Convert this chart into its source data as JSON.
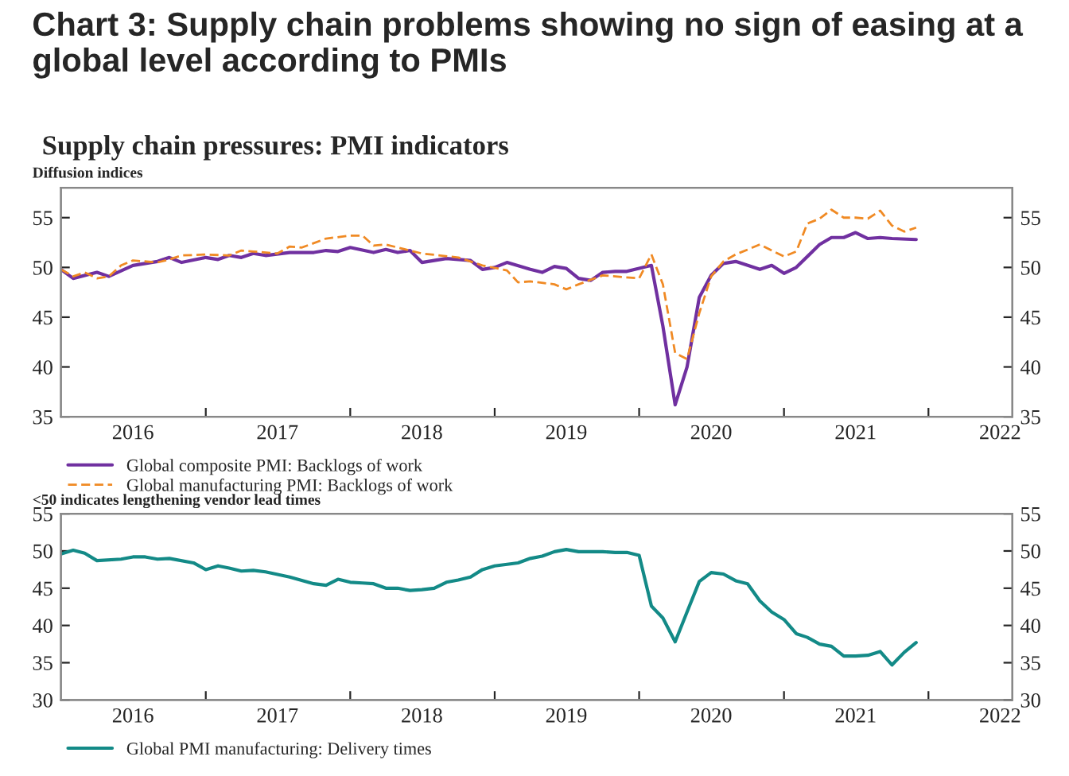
{
  "chart_data": [
    {
      "type": "line",
      "title": "Chart 3: Supply chain problems showing no sign of easing at a global level according to PMIs",
      "subtitle": "Supply chain pressures: PMI indicators",
      "ylabel": "Diffusion indices",
      "xlim": [
        "2016-01-01",
        "2022-08-01"
      ],
      "xticks": [
        {
          "value": "2016-07-01",
          "label": "2016"
        },
        {
          "value": "2017-01-01",
          "label": null
        },
        {
          "value": "2017-07-01",
          "label": "2017"
        },
        {
          "value": "2018-01-01",
          "label": null
        },
        {
          "value": "2018-07-01",
          "label": "2018"
        },
        {
          "value": "2019-01-01",
          "label": null
        },
        {
          "value": "2019-07-01",
          "label": "2019"
        },
        {
          "value": "2020-01-01",
          "label": null
        },
        {
          "value": "2020-07-01",
          "label": "2020"
        },
        {
          "value": "2021-01-01",
          "label": null
        },
        {
          "value": "2021-07-01",
          "label": "2021"
        },
        {
          "value": "2022-01-01",
          "label": null
        },
        {
          "value": "2022-07-01",
          "label": "2022"
        }
      ],
      "ylim": [
        35,
        58
      ],
      "yticks": [
        35,
        40,
        45,
        50,
        55
      ],
      "y2lim": [
        35,
        58
      ],
      "y2ticks": [
        35,
        40,
        45,
        50,
        55
      ],
      "grid": false,
      "legend": "bottom left",
      "series": [
        {
          "name": "Global composite PMI: Backlogs of work",
          "color": "#7030a0",
          "line_style": "solid",
          "x": [
            "2016-01",
            "2016-02",
            "2016-04",
            "2016-05",
            "2016-07",
            "2016-09",
            "2016-10",
            "2016-11",
            "2017-01",
            "2017-02",
            "2017-03",
            "2017-04",
            "2017-05",
            "2017-06",
            "2017-08",
            "2017-10",
            "2017-11",
            "2017-12",
            "2018-01",
            "2018-03",
            "2018-04",
            "2018-05",
            "2018-06",
            "2018-07",
            "2018-09",
            "2018-11",
            "2018-12",
            "2019-01",
            "2019-02",
            "2019-04",
            "2019-05",
            "2019-06",
            "2019-07",
            "2019-08",
            "2019-09",
            "2019-10",
            "2019-11",
            "2019-12",
            "2020-02",
            "2020-03",
            "2020-04",
            "2020-05",
            "2020-06",
            "2020-07",
            "2020-08",
            "2020-09",
            "2020-11",
            "2020-12",
            "2021-01",
            "2021-02",
            "2021-04",
            "2021-05",
            "2021-06",
            "2021-07",
            "2021-08",
            "2021-09",
            "2021-10",
            "2021-12"
          ],
          "values": [
            49.8,
            48.9,
            49.5,
            49.1,
            50.2,
            50.6,
            51.0,
            50.5,
            51.0,
            50.8,
            51.2,
            51.0,
            51.4,
            51.2,
            51.5,
            51.5,
            51.7,
            51.6,
            52.0,
            51.5,
            51.8,
            51.5,
            51.7,
            50.5,
            50.9,
            50.7,
            49.8,
            50.0,
            50.5,
            49.8,
            49.5,
            50.1,
            49.9,
            48.9,
            48.7,
            49.5,
            49.6,
            49.6,
            50.2,
            44.1,
            36.2,
            40.0,
            47.0,
            49.2,
            50.4,
            50.6,
            49.8,
            50.2,
            49.4,
            50.0,
            52.3,
            53.0,
            53.0,
            53.5,
            52.9,
            53.0,
            52.9,
            52.8
          ]
        },
        {
          "name": "Global manufacturing PMI: Backlogs of work",
          "color": "#f08a24",
          "line_style": "dashed",
          "x": [
            "2016-01",
            "2016-02",
            "2016-03",
            "2016-04",
            "2016-05",
            "2016-06",
            "2016-07",
            "2016-09",
            "2016-10",
            "2016-11",
            "2017-01",
            "2017-03",
            "2017-04",
            "2017-05",
            "2017-07",
            "2017-08",
            "2017-09",
            "2017-11",
            "2018-01",
            "2018-02",
            "2018-03",
            "2018-04",
            "2018-05",
            "2018-07",
            "2018-10",
            "2018-11",
            "2018-12",
            "2019-02",
            "2019-03",
            "2019-04",
            "2019-06",
            "2019-07",
            "2019-08",
            "2019-10",
            "2019-11",
            "2020-01",
            "2020-02",
            "2020-03",
            "2020-04",
            "2020-05",
            "2020-06",
            "2020-07",
            "2020-08",
            "2020-09",
            "2020-11",
            "2020-12",
            "2021-01",
            "2021-02",
            "2021-03",
            "2021-04",
            "2021-05",
            "2021-06",
            "2021-07",
            "2021-08",
            "2021-09",
            "2021-10",
            "2021-11",
            "2021-12"
          ],
          "values": [
            49.8,
            49.1,
            49.5,
            48.9,
            49.1,
            50.2,
            50.7,
            50.5,
            50.8,
            51.2,
            51.3,
            51.2,
            51.7,
            51.6,
            51.4,
            52.1,
            52.0,
            52.9,
            53.2,
            53.2,
            52.2,
            52.3,
            52.0,
            51.4,
            51.0,
            50.6,
            50.2,
            49.7,
            48.5,
            48.6,
            48.3,
            47.8,
            48.3,
            49.2,
            49.1,
            48.9,
            51.3,
            48.3,
            41.4,
            40.8,
            45.4,
            49.1,
            50.6,
            51.3,
            52.3,
            51.7,
            51.1,
            51.6,
            54.4,
            54.9,
            55.8,
            55.0,
            55.0,
            54.9,
            55.7,
            54.2,
            53.6,
            54.0
          ]
        }
      ]
    },
    {
      "type": "line",
      "ylabel": "<50 indicates lengthening vendor lead times",
      "xlim": [
        "2016-01-01",
        "2022-08-01"
      ],
      "xticks": [
        {
          "value": "2016-07-01",
          "label": "2016"
        },
        {
          "value": "2017-01-01",
          "label": null
        },
        {
          "value": "2017-07-01",
          "label": "2017"
        },
        {
          "value": "2018-01-01",
          "label": null
        },
        {
          "value": "2018-07-01",
          "label": "2018"
        },
        {
          "value": "2019-01-01",
          "label": null
        },
        {
          "value": "2019-07-01",
          "label": "2019"
        },
        {
          "value": "2020-01-01",
          "label": null
        },
        {
          "value": "2020-07-01",
          "label": "2020"
        },
        {
          "value": "2021-01-01",
          "label": null
        },
        {
          "value": "2021-07-01",
          "label": "2021"
        },
        {
          "value": "2022-01-01",
          "label": null
        },
        {
          "value": "2022-07-01",
          "label": "2022"
        }
      ],
      "ylim": [
        30,
        55
      ],
      "yticks": [
        30,
        35,
        40,
        45,
        50,
        55
      ],
      "y2lim": [
        30,
        55
      ],
      "y2ticks": [
        30,
        35,
        40,
        45,
        50,
        55
      ],
      "grid": false,
      "legend": "bottom left",
      "series": [
        {
          "name": "Global PMI manufacturing: Delivery times",
          "color": "#138a87",
          "line_style": "solid",
          "x": [
            "2016-01",
            "2016-02",
            "2016-03",
            "2016-04",
            "2016-06",
            "2016-07",
            "2016-08",
            "2016-09",
            "2016-10",
            "2016-12",
            "2017-01",
            "2017-02",
            "2017-03",
            "2017-04",
            "2017-05",
            "2017-06",
            "2017-08",
            "2017-10",
            "2017-11",
            "2017-12",
            "2018-01",
            "2018-02",
            "2018-03",
            "2018-04",
            "2018-05",
            "2018-06",
            "2018-07",
            "2018-08",
            "2018-09",
            "2018-10",
            "2018-11",
            "2018-12",
            "2019-01",
            "2019-03",
            "2019-04",
            "2019-05",
            "2019-06",
            "2019-07",
            "2019-08",
            "2019-10",
            "2019-11",
            "2019-12",
            "2020-01",
            "2020-02",
            "2020-03",
            "2020-04",
            "2020-05",
            "2020-06",
            "2020-07",
            "2020-08",
            "2020-09",
            "2020-10",
            "2020-11",
            "2020-12",
            "2021-01",
            "2021-02",
            "2021-03",
            "2021-04",
            "2021-05",
            "2021-06",
            "2021-07",
            "2021-08",
            "2021-09",
            "2021-10",
            "2021-11",
            "2021-12"
          ],
          "values": [
            49.6,
            50.1,
            49.7,
            48.7,
            48.9,
            49.2,
            49.2,
            48.9,
            49.0,
            48.4,
            47.5,
            48.0,
            47.7,
            47.3,
            47.4,
            47.2,
            46.5,
            45.6,
            45.4,
            46.2,
            45.8,
            45.7,
            45.6,
            45.0,
            45.0,
            44.7,
            44.8,
            45.0,
            45.8,
            46.1,
            46.5,
            47.5,
            48.0,
            48.4,
            49.0,
            49.3,
            49.9,
            50.2,
            49.9,
            49.9,
            49.8,
            49.8,
            49.4,
            42.6,
            41.0,
            37.8,
            41.8,
            45.9,
            47.1,
            46.9,
            46.0,
            45.6,
            43.3,
            41.8,
            40.8,
            38.9,
            38.4,
            37.5,
            37.2,
            35.9,
            35.9,
            36.0,
            36.5,
            34.7,
            36.4,
            37.7
          ]
        }
      ]
    }
  ]
}
